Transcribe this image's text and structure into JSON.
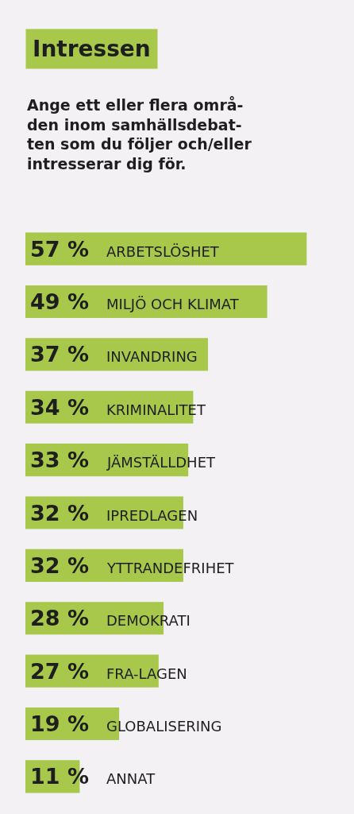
{
  "chart_data": {
    "type": "bar",
    "orientation": "horizontal",
    "title": "Intressen",
    "subtitle": "Ange ett eller flera områ-\nden inom samhällsdebat-\nten som du följer och/eller\nintresserar dig för.",
    "categories": [
      "ARBETSLÖSHET",
      "MILJÖ OCH KLIMAT",
      "INVANDRING",
      "KRIMINALITET",
      "JÄMSTÄLLDHET",
      "IPREDLAGEN",
      "YTTRANDEFRIHET",
      "DEMOKRATI",
      "FRA-LAGEN",
      "GLOBALISERING",
      "ANNAT"
    ],
    "values": [
      57,
      49,
      37,
      34,
      33,
      32,
      32,
      28,
      27,
      19,
      11
    ],
    "value_labels": [
      "57 %",
      "49 %",
      "37 %",
      "34 %",
      "33 %",
      "32 %",
      "32 %",
      "28 %",
      "27 %",
      "19 %",
      "11 %"
    ],
    "color": "#a8c84c"
  }
}
